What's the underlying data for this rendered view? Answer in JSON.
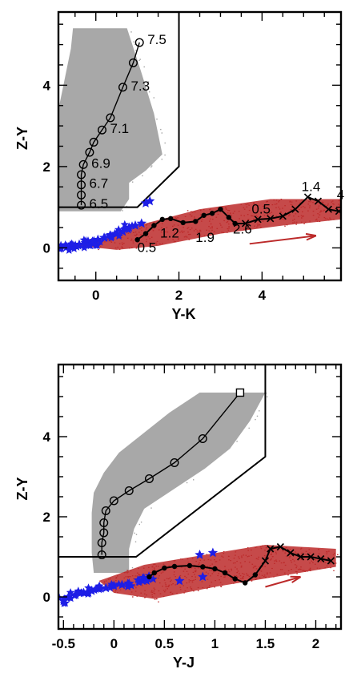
{
  "chart_data": [
    {
      "type": "scatter",
      "xlabel": "Y-K",
      "ylabel": "Z-Y",
      "xlim": [
        -0.9,
        5.9
      ],
      "ylim": [
        -0.8,
        5.8
      ],
      "xticks": [
        0,
        2,
        4
      ],
      "yticks": [
        0,
        2,
        4
      ],
      "colors": {
        "gray": "#a3a3a3",
        "red": "#bc2a2a",
        "blue": "#1e1ee6",
        "line": "#000000"
      },
      "gray_band": {
        "left_x": [
          [
            5.4,
            -0.55
          ],
          [
            4.9,
            -0.6
          ],
          [
            4.4,
            -0.7
          ],
          [
            3.9,
            -0.8
          ],
          [
            3.4,
            -0.9
          ],
          [
            2.9,
            -0.9
          ],
          [
            2.3,
            -0.9
          ],
          [
            1.7,
            -0.9
          ],
          [
            1.2,
            -0.9
          ],
          [
            0.9,
            -0.9
          ]
        ],
        "right_x": [
          [
            5.4,
            0.75
          ],
          [
            4.3,
            1.1
          ],
          [
            3.3,
            1.4
          ],
          [
            2.3,
            1.6
          ],
          [
            1.9,
            1.2
          ],
          [
            1.6,
            0.8
          ],
          [
            1.2,
            0.8
          ],
          [
            0.9,
            0.6
          ]
        ]
      },
      "red_cloud_outline": [
        [
          -0.4,
          0.05
        ],
        [
          1.0,
          0.55
        ],
        [
          2.5,
          0.95
        ],
        [
          4.2,
          1.2
        ],
        [
          5.9,
          1.2
        ],
        [
          5.9,
          0.7
        ],
        [
          4.5,
          0.55
        ],
        [
          3.0,
          0.35
        ],
        [
          1.5,
          0.05
        ],
        [
          0.5,
          -0.05
        ]
      ],
      "boundary": [
        [
          -0.9,
          1.0
        ],
        [
          1.0,
          1.0
        ],
        [
          2.0,
          2.0
        ],
        [
          2.0,
          5.8
        ]
      ],
      "main_sequence_track": {
        "points": [
          [
            1.05,
            5.05
          ],
          [
            0.9,
            4.55
          ],
          [
            0.65,
            3.95
          ],
          [
            0.35,
            3.2
          ],
          [
            0.15,
            2.9
          ],
          [
            -0.05,
            2.6
          ],
          [
            -0.15,
            2.35
          ],
          [
            -0.3,
            2.05
          ],
          [
            -0.35,
            1.8
          ],
          [
            -0.35,
            1.55
          ],
          [
            -0.35,
            1.3
          ],
          [
            -0.35,
            1.05
          ]
        ],
        "labels": [
          {
            "text": "7.5",
            "x": 1.05,
            "y": 5.05
          },
          {
            "text": "7.3",
            "x": 0.65,
            "y": 3.95
          },
          {
            "text": "7.1",
            "x": 0.15,
            "y": 2.9
          },
          {
            "text": "6.9",
            "x": -0.3,
            "y": 2.05
          },
          {
            "text": "6.7",
            "x": -0.35,
            "y": 1.55
          },
          {
            "text": "6.5",
            "x": -0.35,
            "y": 1.05
          }
        ]
      },
      "dwarf_track": {
        "points": [
          [
            1.0,
            0.2
          ],
          [
            1.2,
            0.35
          ],
          [
            1.4,
            0.55
          ],
          [
            1.6,
            0.7
          ],
          [
            1.8,
            0.72
          ],
          [
            2.1,
            0.62
          ],
          [
            2.4,
            0.65
          ],
          [
            2.6,
            0.8
          ],
          [
            2.8,
            0.85
          ],
          [
            3.0,
            0.95
          ],
          [
            3.2,
            0.75
          ],
          [
            3.35,
            0.6
          ],
          [
            3.6,
            0.6
          ],
          [
            3.9,
            0.7
          ],
          [
            4.2,
            0.72
          ],
          [
            4.5,
            0.78
          ],
          [
            4.8,
            0.95
          ],
          [
            5.1,
            1.25
          ],
          [
            5.35,
            1.15
          ],
          [
            5.6,
            0.95
          ],
          [
            5.85,
            0.9
          ]
        ],
        "labels": [
          {
            "text": "0.5",
            "x": 1.0,
            "y": -0.1
          },
          {
            "text": "1.2",
            "x": 1.55,
            "y": 0.25
          },
          {
            "text": "1.9",
            "x": 2.4,
            "y": 0.15
          },
          {
            "text": "2.6",
            "x": 3.3,
            "y": 0.35
          },
          {
            "text": "0.5",
            "x": 3.75,
            "y": 0.85
          },
          {
            "text": "1.4",
            "x": 4.95,
            "y": 1.4
          },
          {
            "text": "4",
            "x": 5.8,
            "y": 1.2
          }
        ]
      },
      "blue_stars": [
        [
          -0.85,
          0.0
        ],
        [
          -0.7,
          0.02
        ],
        [
          -0.55,
          0.05
        ],
        [
          -0.4,
          0.08
        ],
        [
          -0.25,
          0.12
        ],
        [
          -0.1,
          0.12
        ],
        [
          0.05,
          0.2
        ],
        [
          0.2,
          0.25
        ],
        [
          0.35,
          0.3
        ],
        [
          0.5,
          0.35
        ],
        [
          0.65,
          0.4
        ],
        [
          0.8,
          0.5
        ],
        [
          0.95,
          0.55
        ],
        [
          1.1,
          0.6
        ],
        [
          1.3,
          1.15
        ],
        [
          1.2,
          1.1
        ]
      ],
      "arrow": {
        "from": [
          3.7,
          0.1
        ],
        "to": [
          5.3,
          0.3
        ]
      }
    },
    {
      "type": "scatter",
      "xlabel": "Y-J",
      "ylabel": "Z-Y",
      "xlim": [
        -0.55,
        2.25
      ],
      "ylim": [
        -0.8,
        5.8
      ],
      "xticks": [
        -0.5,
        0,
        0.5,
        1,
        1.5,
        2
      ],
      "xtick_labels": [
        "-0.5",
        "0",
        "0.5",
        "1",
        "1.5",
        "2"
      ],
      "yticks": [
        0,
        2,
        4
      ],
      "colors": {
        "gray": "#a3a3a3",
        "red": "#bc2a2a",
        "blue": "#1e1ee6",
        "line": "#000000"
      },
      "gray_band": {
        "left_x": [
          [
            5.1,
            0.85
          ],
          [
            4.6,
            0.55
          ],
          [
            4.1,
            0.3
          ],
          [
            3.6,
            0.05
          ],
          [
            3.1,
            -0.1
          ],
          [
            2.6,
            -0.2
          ],
          [
            2.1,
            -0.22
          ],
          [
            1.6,
            -0.22
          ],
          [
            1.1,
            -0.22
          ],
          [
            0.6,
            -0.2
          ]
        ],
        "right_x": [
          [
            5.1,
            1.5
          ],
          [
            4.4,
            1.35
          ],
          [
            3.7,
            1.15
          ],
          [
            3.2,
            0.9
          ],
          [
            2.7,
            0.6
          ],
          [
            2.2,
            0.3
          ],
          [
            1.7,
            0.2
          ],
          [
            1.2,
            0.15
          ],
          [
            0.6,
            0.15
          ]
        ]
      },
      "red_cloud_outline": [
        [
          -0.15,
          0.4
        ],
        [
          0.3,
          0.8
        ],
        [
          0.9,
          1.05
        ],
        [
          1.5,
          1.3
        ],
        [
          2.2,
          1.2
        ],
        [
          2.2,
          0.75
        ],
        [
          1.6,
          0.5
        ],
        [
          1.0,
          0.25
        ],
        [
          0.4,
          -0.05
        ],
        [
          0.0,
          0.1
        ]
      ],
      "boundary": [
        [
          -0.55,
          1.0
        ],
        [
          0.22,
          1.0
        ],
        [
          1.5,
          3.5
        ],
        [
          1.5,
          5.8
        ]
      ],
      "main_sequence_track": {
        "points": [
          [
            1.25,
            5.1
          ],
          [
            0.88,
            3.95
          ],
          [
            0.6,
            3.35
          ],
          [
            0.35,
            2.95
          ],
          [
            0.15,
            2.65
          ],
          [
            0.0,
            2.4
          ],
          [
            -0.08,
            2.15
          ],
          [
            -0.1,
            1.85
          ],
          [
            -0.1,
            1.6
          ],
          [
            -0.12,
            1.35
          ],
          [
            -0.12,
            1.05
          ]
        ],
        "labels": []
      },
      "dwarf_track": {
        "points": [
          [
            0.35,
            0.5
          ],
          [
            0.4,
            0.6
          ],
          [
            0.5,
            0.72
          ],
          [
            0.6,
            0.76
          ],
          [
            0.75,
            0.78
          ],
          [
            0.88,
            0.75
          ],
          [
            1.0,
            0.7
          ],
          [
            1.1,
            0.6
          ],
          [
            1.2,
            0.45
          ],
          [
            1.3,
            0.35
          ],
          [
            1.4,
            0.55
          ],
          [
            1.5,
            0.9
          ],
          [
            1.55,
            1.2
          ],
          [
            1.65,
            1.25
          ],
          [
            1.75,
            1.1
          ],
          [
            1.85,
            1.0
          ],
          [
            1.95,
            1.0
          ],
          [
            2.05,
            0.95
          ],
          [
            2.15,
            0.9
          ]
        ],
        "labels": []
      },
      "blue_stars": [
        [
          -0.5,
          -0.1
        ],
        [
          -0.45,
          0.0
        ],
        [
          -0.38,
          0.05
        ],
        [
          -0.3,
          0.1
        ],
        [
          -0.22,
          0.15
        ],
        [
          -0.15,
          0.2
        ],
        [
          -0.08,
          0.22
        ],
        [
          0.0,
          0.28
        ],
        [
          0.08,
          0.3
        ],
        [
          0.15,
          0.33
        ],
        [
          0.25,
          0.4
        ],
        [
          0.34,
          0.45
        ],
        [
          0.85,
          1.05
        ],
        [
          0.98,
          1.1
        ],
        [
          0.65,
          0.4
        ],
        [
          0.88,
          0.5
        ]
      ],
      "arrow": {
        "from": [
          1.5,
          0.25
        ],
        "to": [
          1.85,
          0.5
        ]
      }
    }
  ]
}
